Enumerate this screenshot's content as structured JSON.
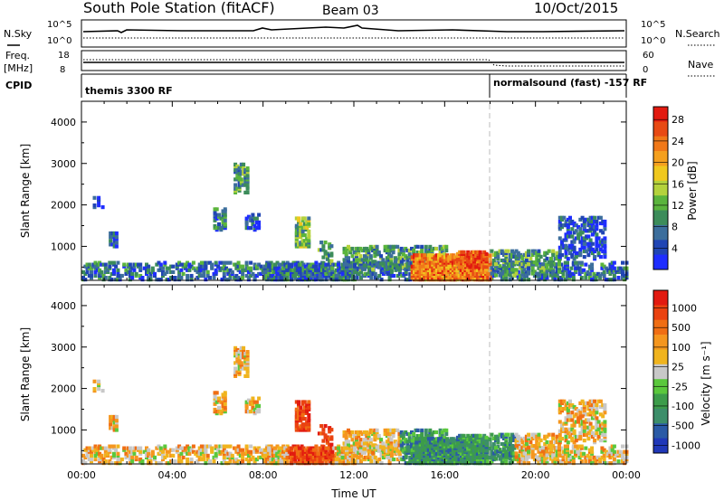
{
  "header": {
    "station": "South Pole Station (fitACF)",
    "beam": "Beam 03",
    "date": "10/Oct/2015"
  },
  "strip": {
    "nsky_label": "N.Sky",
    "nsearch_label": "N.Search",
    "nave_label": "Nave",
    "freq_label_1": "Freq.",
    "freq_label_2": "[MHz]",
    "cpid_label": "CPID",
    "noise_left_ticks": [
      "10^5",
      "10^0"
    ],
    "noise_right_ticks": [
      "10^5",
      "10^0"
    ],
    "freq_left_ticks": [
      "18",
      "8"
    ],
    "nave_right_ticks": [
      "60",
      "0"
    ],
    "cpid_segments": [
      {
        "label": "themis 3300 RF",
        "start_hour": 0
      },
      {
        "label": "normalsound (fast) -157 RF",
        "start_hour": 17.95
      }
    ]
  },
  "chart_data": [
    {
      "type": "heatmap",
      "name": "power",
      "ylabel": "Slant Range [km]",
      "xlabel": "",
      "ylim": [
        180,
        4500
      ],
      "yticks": [
        "1000",
        "2000",
        "3000",
        "4000"
      ],
      "xlim_hours": [
        0,
        24
      ],
      "colorbar_label": "Power [dB]",
      "colorbar_ticks": [
        "4",
        "8",
        "12",
        "16",
        "20",
        "24",
        "28"
      ],
      "colorbar_colors": [
        "#1e2dff",
        "#2045b4",
        "#3c6e9c",
        "#3c8c5a",
        "#5ab43c",
        "#b4d23c",
        "#f0c81e",
        "#f5a01e",
        "#f07818",
        "#e84a14",
        "#e21a10"
      ],
      "gap_hour": 17.95
    },
    {
      "type": "heatmap",
      "name": "velocity",
      "ylabel": "Slant Range [km]",
      "xlabel": "Time UT",
      "ylim": [
        180,
        4500
      ],
      "yticks": [
        "1000",
        "2000",
        "3000",
        "4000"
      ],
      "xlim_hours": [
        0,
        24
      ],
      "xticks": [
        "00:00",
        "04:00",
        "08:00",
        "12:00",
        "16:00",
        "20:00",
        "00:00"
      ],
      "colorbar_label": "Velocity [m s⁻¹]",
      "colorbar_ticks": [
        "1000",
        "500",
        "100",
        "25",
        "-25",
        "-100",
        "-500",
        "-1000"
      ],
      "colorbar_colors": [
        "#2038b8",
        "#2a5aa6",
        "#3c8e6a",
        "#3c9c4a",
        "#5ac83c",
        "#c8c8c8",
        "#f0b41e",
        "#f5961e",
        "#f06e14",
        "#ea4210",
        "#e21a10"
      ],
      "gap_hour": 17.95
    }
  ]
}
